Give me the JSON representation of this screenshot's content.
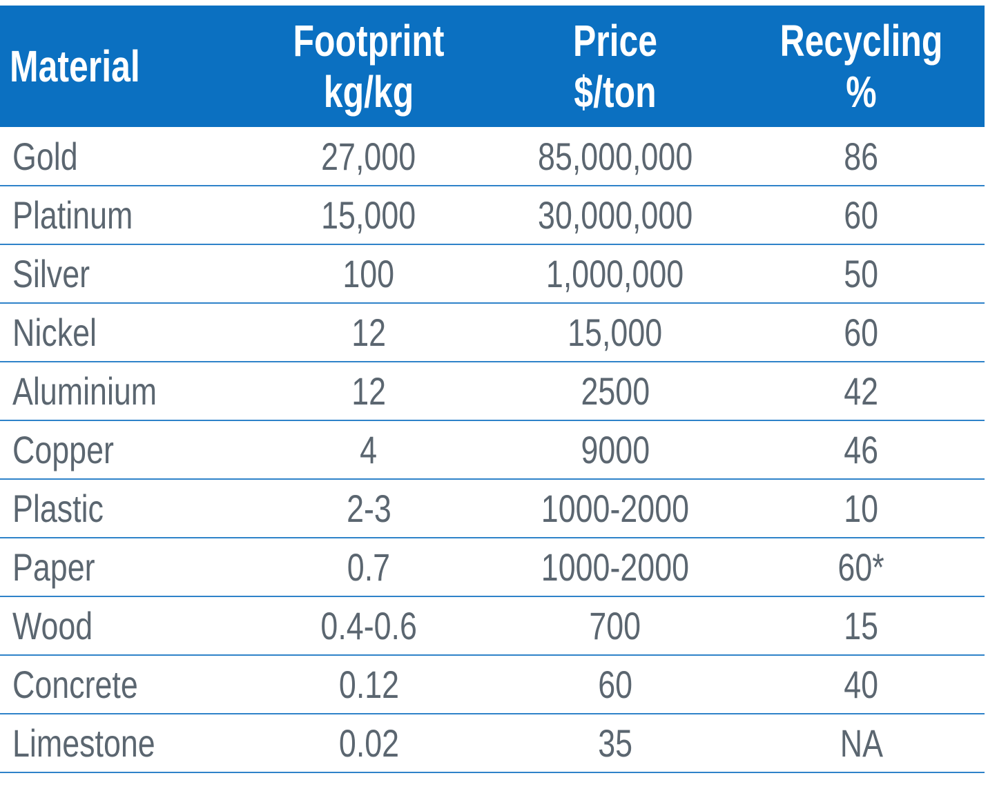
{
  "chart_data": {
    "type": "table",
    "columns": [
      {
        "line1": "Material",
        "line2": ""
      },
      {
        "line1": "Footprint",
        "line2": "kg/kg"
      },
      {
        "line1": "Price",
        "line2": "$/ton"
      },
      {
        "line1": "Recycling",
        "line2": "%"
      }
    ],
    "rows": [
      [
        "Gold",
        "27,000",
        "85,000,000",
        "86"
      ],
      [
        "Platinum",
        "15,000",
        "30,000,000",
        "60"
      ],
      [
        "Silver",
        "100",
        "1,000,000",
        "50"
      ],
      [
        "Nickel",
        "12",
        "15,000",
        "60"
      ],
      [
        "Aluminium",
        "12",
        "2500",
        "42"
      ],
      [
        "Copper",
        "4",
        "9000",
        "46"
      ],
      [
        "Plastic",
        "2-3",
        "1000-2000",
        "10"
      ],
      [
        "Paper",
        "0.7",
        "1000-2000",
        "60*"
      ],
      [
        "Wood",
        "0.4-0.6",
        "700",
        "15"
      ],
      [
        "Concrete",
        "0.12",
        "60",
        "40"
      ],
      [
        "Limestone",
        "0.02",
        "35",
        "NA"
      ]
    ],
    "colors": {
      "header_background": "#0b70c1",
      "header_text": "#ffffff",
      "body_text": "#5b6670",
      "row_divider": "#2e82c9"
    }
  }
}
